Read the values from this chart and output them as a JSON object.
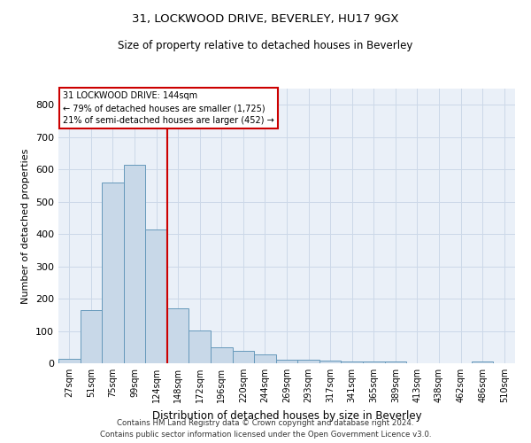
{
  "title1": "31, LOCKWOOD DRIVE, BEVERLEY, HU17 9GX",
  "title2": "Size of property relative to detached houses in Beverley",
  "xlabel": "Distribution of detached houses by size in Beverley",
  "ylabel": "Number of detached properties",
  "categories": [
    "27sqm",
    "51sqm",
    "75sqm",
    "99sqm",
    "124sqm",
    "148sqm",
    "172sqm",
    "196sqm",
    "220sqm",
    "244sqm",
    "269sqm",
    "293sqm",
    "317sqm",
    "341sqm",
    "365sqm",
    "389sqm",
    "413sqm",
    "438sqm",
    "462sqm",
    "486sqm",
    "510sqm"
  ],
  "values": [
    15,
    165,
    560,
    615,
    415,
    170,
    102,
    50,
    38,
    28,
    12,
    10,
    7,
    5,
    5,
    5,
    0,
    0,
    0,
    5,
    0
  ],
  "bar_color": "#c8d8e8",
  "bar_edge_color": "#6699bb",
  "vline_color": "#cc0000",
  "vline_x_index": 5,
  "ylim": [
    0,
    850
  ],
  "yticks": [
    0,
    100,
    200,
    300,
    400,
    500,
    600,
    700,
    800
  ],
  "annotation_title": "31 LOCKWOOD DRIVE: 144sqm",
  "annotation_line1": "← 79% of detached houses are smaller (1,725)",
  "annotation_line2": "21% of semi-detached houses are larger (452) →",
  "annotation_box_color": "#ffffff",
  "annotation_box_edge": "#cc0000",
  "footer1": "Contains HM Land Registry data © Crown copyright and database right 2024.",
  "footer2": "Contains public sector information licensed under the Open Government Licence v3.0.",
  "grid_color": "#ccd8e8",
  "background_color": "#eaf0f8"
}
